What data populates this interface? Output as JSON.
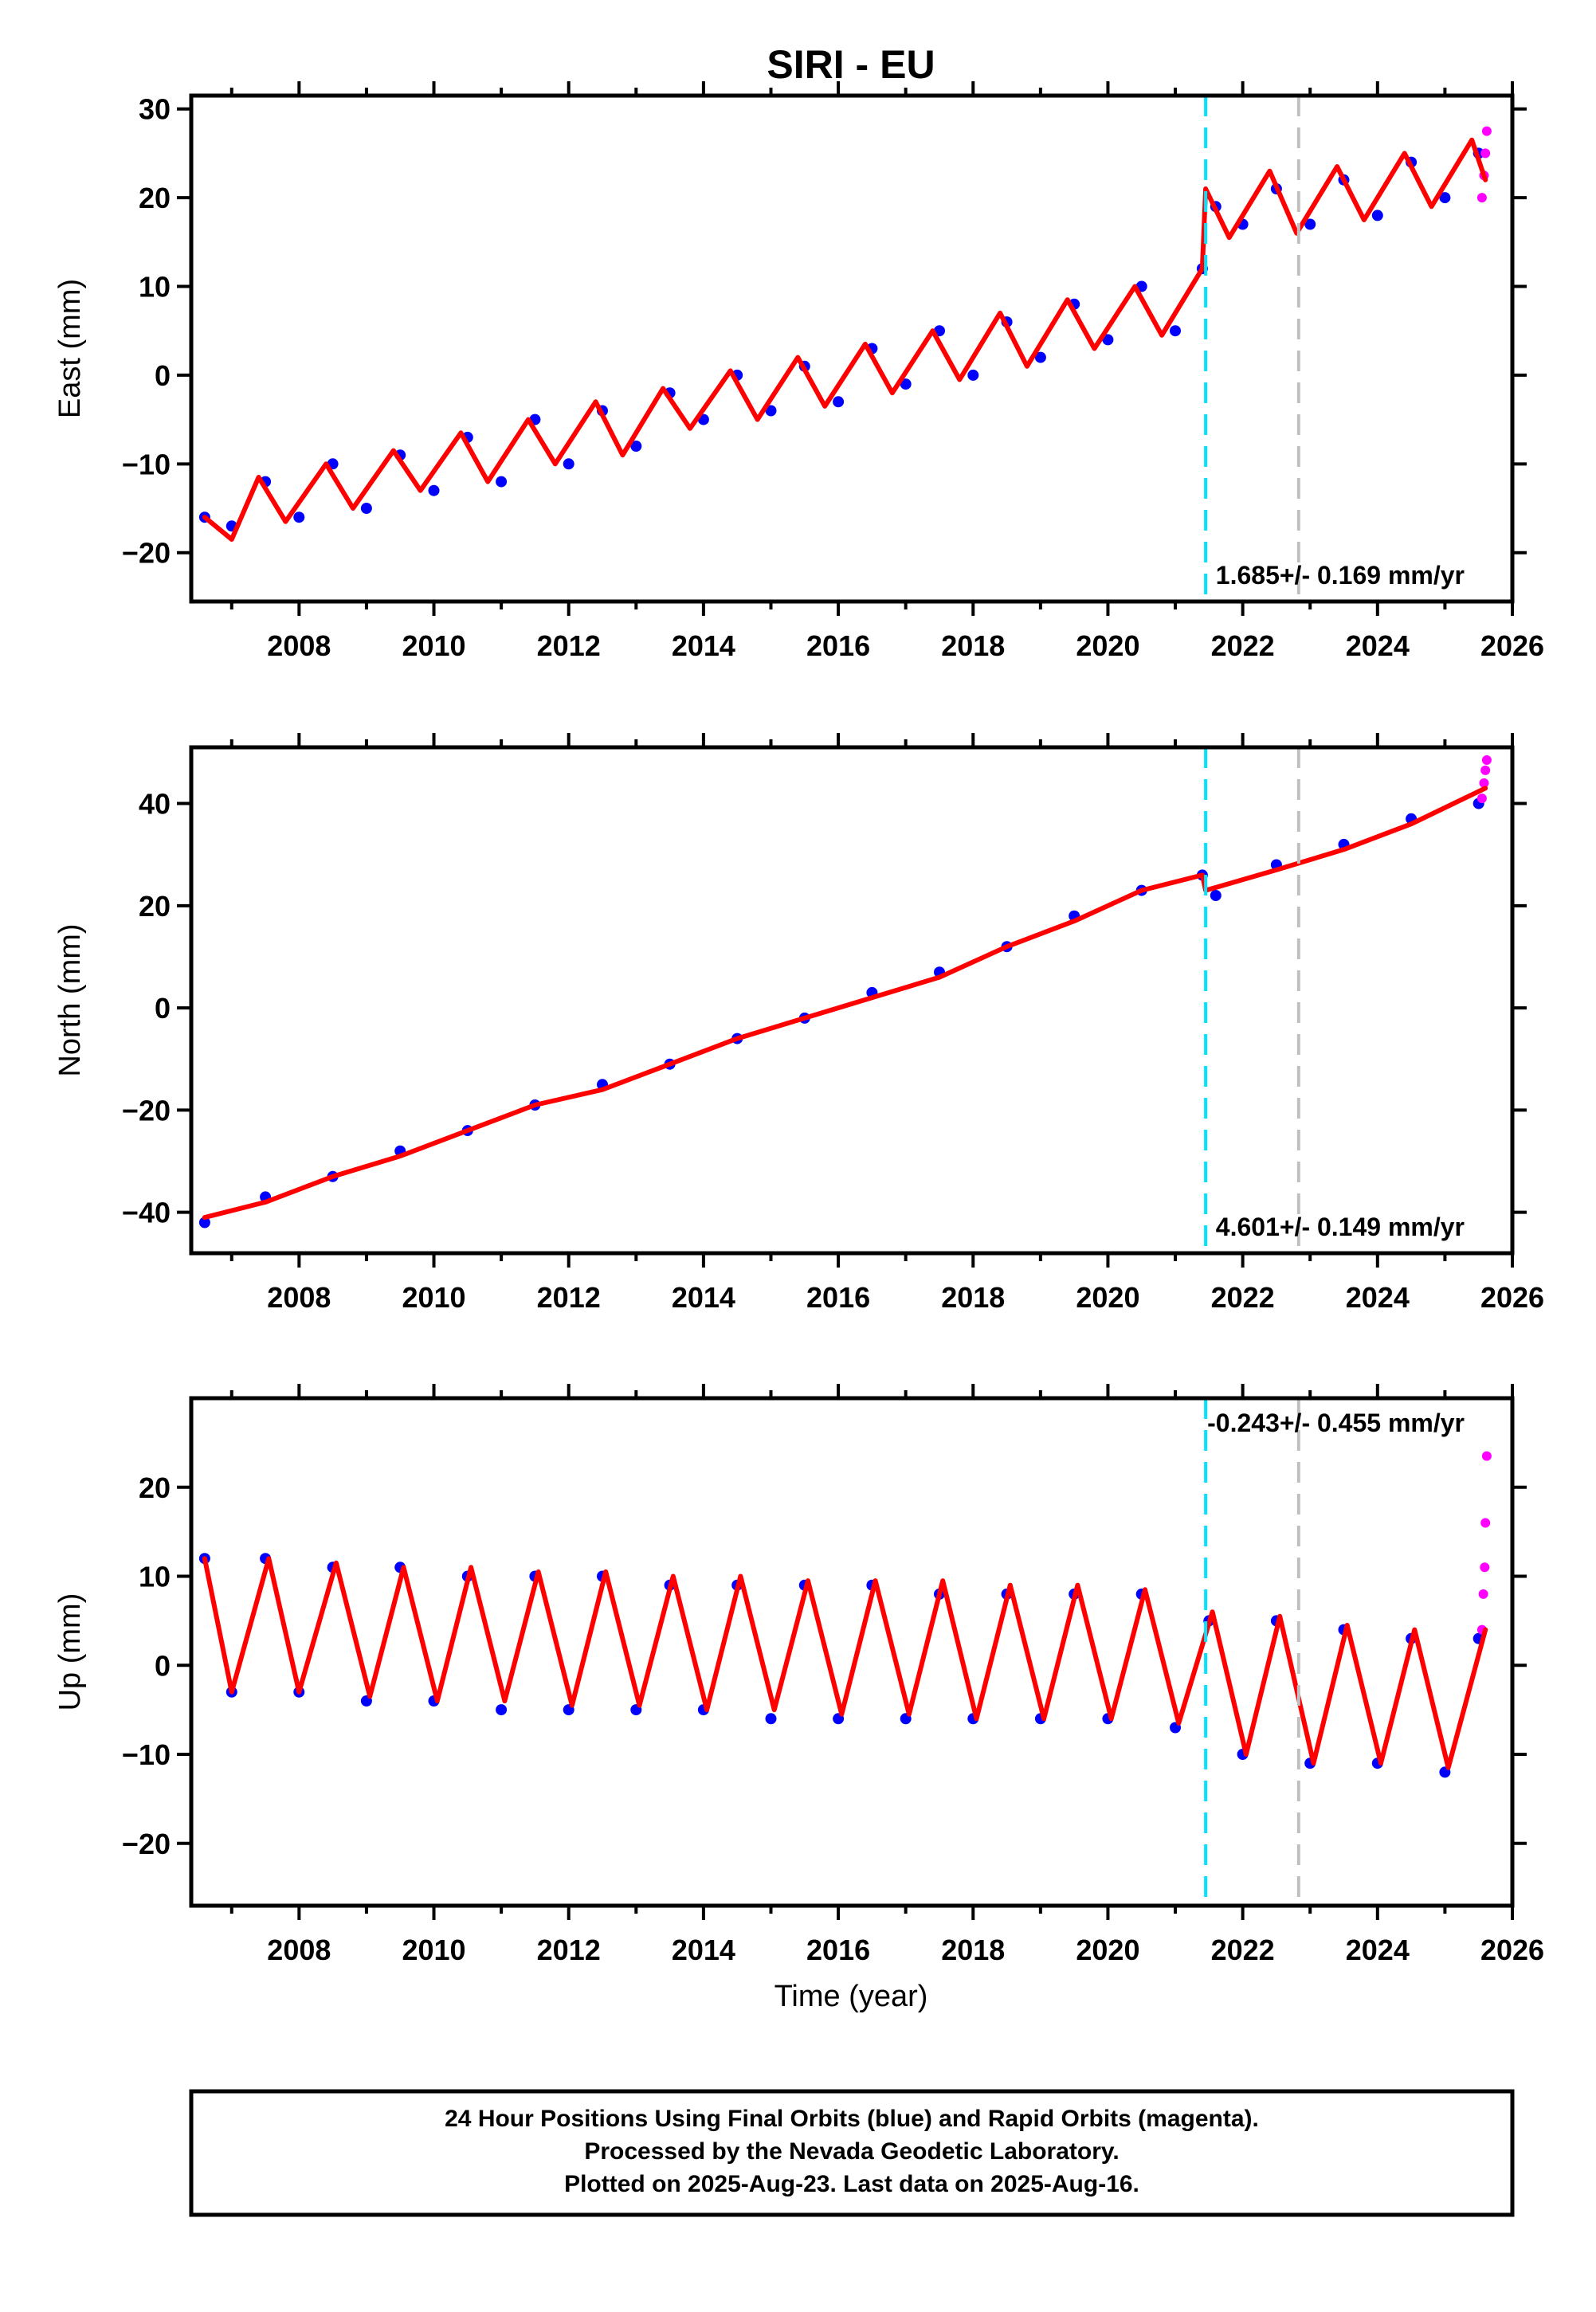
{
  "title": "SIRI - EU",
  "colors": {
    "final_orbits": "#0000ff",
    "rapid_orbits": "#ff00ff",
    "model": "#ff0000",
    "equipment_change": "#00e5ff",
    "other_event": "#c0c0c0"
  },
  "x_axis": {
    "label": "Time (year)",
    "range": [
      2006.4,
      2026.0
    ],
    "ticks": [
      2008,
      2010,
      2012,
      2014,
      2016,
      2018,
      2020,
      2022,
      2024,
      2026
    ],
    "tick_labels": [
      "2008",
      "2010",
      "2012",
      "2014",
      "2016",
      "2018",
      "2020",
      "2022",
      "2024",
      "2026"
    ]
  },
  "event_lines": [
    {
      "x": 2021.45,
      "color": "#00e5ff",
      "style": "dashed"
    },
    {
      "x": 2022.83,
      "color": "#c0c0c0",
      "style": "dashed"
    }
  ],
  "chart_data": [
    {
      "type": "scatter",
      "component": "East",
      "ylabel": "East (mm)",
      "ylim": [
        -25.5,
        31.5
      ],
      "yticks": [
        -20,
        -10,
        0,
        10,
        20,
        30
      ],
      "ytick_labels": [
        "−20",
        "−10",
        "0",
        "10",
        "20",
        "30"
      ],
      "rate_text": "1.685+/- 0.169 mm/yr",
      "rate_position": "bottom-right",
      "series": [
        {
          "role": "final",
          "color": "#0000ff",
          "x": [
            2006.6,
            2007.0,
            2007.5,
            2008.0,
            2008.5,
            2009.0,
            2009.5,
            2010.0,
            2010.5,
            2011.0,
            2011.5,
            2012.0,
            2012.5,
            2013.0,
            2013.5,
            2014.0,
            2014.5,
            2015.0,
            2015.5,
            2016.0,
            2016.5,
            2017.0,
            2017.5,
            2018.0,
            2018.5,
            2019.0,
            2019.5,
            2020.0,
            2020.5,
            2021.0,
            2021.4,
            2021.6,
            2022.0,
            2022.5,
            2023.0,
            2023.5,
            2024.0,
            2024.5,
            2025.0,
            2025.5
          ],
          "y": [
            -16,
            -17,
            -12,
            -16,
            -10,
            -15,
            -9,
            -13,
            -7,
            -12,
            -5,
            -10,
            -4,
            -8,
            -2,
            -5,
            0,
            -4,
            1,
            -3,
            3,
            -1,
            5,
            0,
            6,
            2,
            8,
            4,
            10,
            5,
            12,
            19,
            17,
            21,
            17,
            22,
            18,
            24,
            20,
            25
          ]
        },
        {
          "role": "rapid",
          "color": "#ff00ff",
          "x": [
            2025.55,
            2025.58,
            2025.6,
            2025.62
          ],
          "y": [
            20,
            22.5,
            25,
            27.5
          ]
        },
        {
          "role": "model",
          "color": "#ff0000",
          "x": [
            2006.6,
            2007.0,
            2007.4,
            2007.8,
            2008.4,
            2008.8,
            2009.4,
            2009.8,
            2010.4,
            2010.8,
            2011.4,
            2011.8,
            2012.4,
            2012.8,
            2013.4,
            2013.8,
            2014.4,
            2014.8,
            2015.4,
            2015.8,
            2016.4,
            2016.8,
            2017.4,
            2017.8,
            2018.4,
            2018.8,
            2019.4,
            2019.8,
            2020.4,
            2020.8,
            2021.4,
            2021.45,
            2021.8,
            2022.4,
            2022.8,
            2023.4,
            2023.8,
            2024.4,
            2024.8,
            2025.4,
            2025.6
          ],
          "y": [
            -16,
            -18.5,
            -11.5,
            -16.5,
            -10,
            -15,
            -8.5,
            -13,
            -6.5,
            -12,
            -5,
            -10,
            -3,
            -9,
            -1.5,
            -6,
            0.5,
            -5,
            2,
            -3.5,
            3.5,
            -2,
            5,
            -0.5,
            7,
            1,
            8.5,
            3,
            10,
            4.5,
            12,
            21,
            15.5,
            23,
            16,
            23.5,
            17.5,
            25,
            19,
            26.5,
            22
          ]
        }
      ]
    },
    {
      "type": "scatter",
      "component": "North",
      "ylabel": "North (mm)",
      "ylim": [
        -48,
        51
      ],
      "yticks": [
        -40,
        -20,
        0,
        20,
        40
      ],
      "ytick_labels": [
        "−40",
        "−20",
        "0",
        "20",
        "40"
      ],
      "rate_text": "4.601+/- 0.149 mm/yr",
      "rate_position": "bottom-right",
      "series": [
        {
          "role": "final",
          "color": "#0000ff",
          "x": [
            2006.6,
            2007.5,
            2008.5,
            2009.5,
            2010.5,
            2011.5,
            2012.5,
            2013.5,
            2014.5,
            2015.5,
            2016.5,
            2017.5,
            2018.5,
            2019.5,
            2020.5,
            2021.4,
            2021.6,
            2022.5,
            2023.5,
            2024.5,
            2025.5
          ],
          "y": [
            -42,
            -37,
            -33,
            -28,
            -24,
            -19,
            -15,
            -11,
            -6,
            -2,
            3,
            7,
            12,
            18,
            23,
            26,
            22,
            28,
            32,
            37,
            40
          ]
        },
        {
          "role": "rapid",
          "color": "#ff00ff",
          "x": [
            2025.55,
            2025.58,
            2025.6,
            2025.62
          ],
          "y": [
            41,
            44,
            46.5,
            48.5
          ]
        },
        {
          "role": "model",
          "color": "#ff0000",
          "x": [
            2006.6,
            2007.5,
            2008.5,
            2009.5,
            2010.5,
            2011.5,
            2012.5,
            2013.5,
            2014.5,
            2015.5,
            2016.5,
            2017.5,
            2018.5,
            2019.5,
            2020.5,
            2021.4,
            2021.45,
            2022.5,
            2023.5,
            2024.5,
            2025.6
          ],
          "y": [
            -41,
            -38,
            -33,
            -29,
            -24,
            -19,
            -16,
            -11,
            -6,
            -2,
            2,
            6,
            12,
            17,
            23,
            26,
            23,
            27,
            31,
            36,
            43
          ]
        }
      ]
    },
    {
      "type": "scatter",
      "component": "Up",
      "ylabel": "Up (mm)",
      "ylim": [
        -27,
        30
      ],
      "yticks": [
        -20,
        -10,
        0,
        10,
        20
      ],
      "ytick_labels": [
        "−20",
        "−10",
        "0",
        "10",
        "20"
      ],
      "rate_text": "-0.243+/- 0.455 mm/yr",
      "rate_position": "top-right",
      "series": [
        {
          "role": "final",
          "color": "#0000ff",
          "x": [
            2006.6,
            2007.0,
            2007.5,
            2008.0,
            2008.5,
            2009.0,
            2009.5,
            2010.0,
            2010.5,
            2011.0,
            2011.5,
            2012.0,
            2012.5,
            2013.0,
            2013.5,
            2014.0,
            2014.5,
            2015.0,
            2015.5,
            2016.0,
            2016.5,
            2017.0,
            2017.5,
            2018.0,
            2018.5,
            2019.0,
            2019.5,
            2020.0,
            2020.5,
            2021.0,
            2021.5,
            2022.0,
            2022.5,
            2023.0,
            2023.5,
            2024.0,
            2024.5,
            2025.0,
            2025.5
          ],
          "y": [
            12,
            -3,
            12,
            -3,
            11,
            -4,
            11,
            -4,
            10,
            -5,
            10,
            -5,
            10,
            -5,
            9,
            -5,
            9,
            -6,
            9,
            -6,
            9,
            -6,
            8,
            -6,
            8,
            -6,
            8,
            -6,
            8,
            -7,
            5,
            -10,
            5,
            -11,
            4,
            -11,
            3,
            -12,
            3
          ]
        },
        {
          "role": "rapid",
          "color": "#ff00ff",
          "x": [
            2025.55,
            2025.57,
            2025.59,
            2025.6,
            2025.62
          ],
          "y": [
            4,
            8,
            11,
            16,
            23.5
          ]
        },
        {
          "role": "model",
          "color": "#ff0000",
          "x": [
            2006.6,
            2007.0,
            2007.55,
            2008.0,
            2008.55,
            2009.05,
            2009.55,
            2010.05,
            2010.55,
            2011.05,
            2011.55,
            2012.05,
            2012.55,
            2013.05,
            2013.55,
            2014.05,
            2014.55,
            2015.05,
            2015.55,
            2016.05,
            2016.55,
            2017.05,
            2017.55,
            2018.05,
            2018.55,
            2019.05,
            2019.55,
            2020.05,
            2020.55,
            2021.05,
            2021.55,
            2022.05,
            2022.55,
            2023.05,
            2023.55,
            2024.05,
            2024.55,
            2025.05,
            2025.6
          ],
          "y": [
            12,
            -3,
            12,
            -3,
            11.5,
            -3.5,
            11,
            -4,
            11,
            -4,
            10.5,
            -4.5,
            10.5,
            -4.5,
            10,
            -5,
            10,
            -5,
            9.5,
            -5.5,
            9.5,
            -5.5,
            9.5,
            -6,
            9,
            -6,
            9,
            -6,
            8.5,
            -6.5,
            6,
            -10,
            5.5,
            -11,
            4.5,
            -11,
            4,
            -11.5,
            4
          ]
        }
      ]
    }
  ],
  "footer": {
    "line1": "24 Hour Positions Using Final Orbits (blue) and Rapid Orbits (magenta).",
    "line2": "Processed by the Nevada Geodetic Laboratory.",
    "line3": "Plotted on 2025-Aug-23. Last data on 2025-Aug-16."
  }
}
